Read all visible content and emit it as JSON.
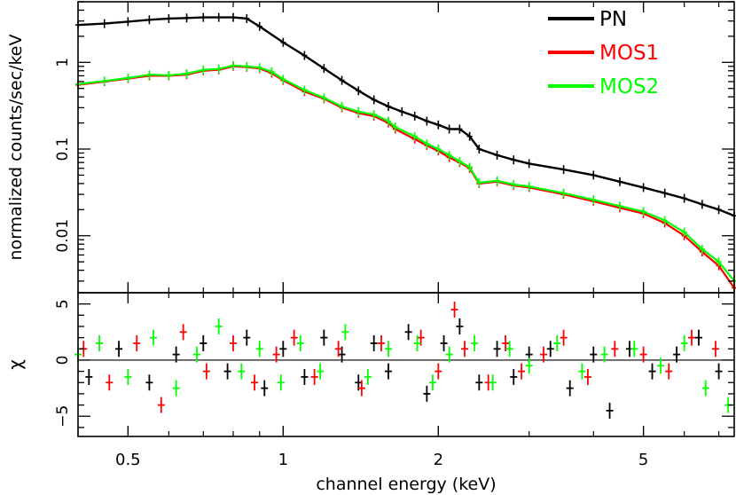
{
  "chart_data": [
    {
      "type": "scatter",
      "panel": "spectrum",
      "title": "",
      "xlabel": "channel energy (keV)",
      "ylabel": "normalized counts/sec/keV",
      "xscale": "log",
      "yscale": "log",
      "xlim": [
        0.4,
        7.5
      ],
      "ylim": [
        0.0022,
        5.0
      ],
      "x_ticks": [
        0.5,
        1,
        2,
        5
      ],
      "x_tick_labels": [
        "0.5",
        "1",
        "2",
        "5"
      ],
      "y_ticks": [
        0.01,
        0.1,
        1
      ],
      "y_tick_labels": [
        "0.01",
        "0.1",
        "1"
      ],
      "legend_position": "top-right",
      "series": [
        {
          "name": "PN",
          "color": "#000000",
          "x": [
            0.4,
            0.45,
            0.5,
            0.55,
            0.6,
            0.65,
            0.7,
            0.75,
            0.8,
            0.85,
            0.9,
            1.0,
            1.1,
            1.2,
            1.3,
            1.4,
            1.5,
            1.6,
            1.7,
            1.8,
            1.9,
            2.0,
            2.1,
            2.2,
            2.3,
            2.4,
            2.6,
            2.8,
            3.0,
            3.5,
            4.0,
            4.5,
            5.0,
            5.5,
            6.0,
            6.5,
            7.0,
            7.5
          ],
          "y": [
            2.7,
            2.8,
            2.95,
            3.1,
            3.2,
            3.25,
            3.3,
            3.3,
            3.3,
            3.2,
            2.6,
            1.7,
            1.2,
            0.85,
            0.62,
            0.47,
            0.37,
            0.31,
            0.27,
            0.24,
            0.21,
            0.19,
            0.17,
            0.17,
            0.14,
            0.1,
            0.085,
            0.075,
            0.068,
            0.058,
            0.05,
            0.042,
            0.036,
            0.031,
            0.027,
            0.023,
            0.02,
            0.017
          ]
        },
        {
          "name": "MOS1",
          "color": "#ff0000",
          "x": [
            0.4,
            0.45,
            0.5,
            0.55,
            0.6,
            0.65,
            0.7,
            0.75,
            0.8,
            0.85,
            0.9,
            0.95,
            1.0,
            1.1,
            1.2,
            1.3,
            1.4,
            1.5,
            1.6,
            1.65,
            1.8,
            1.9,
            2.0,
            2.1,
            2.2,
            2.3,
            2.4,
            2.6,
            2.8,
            3.0,
            3.5,
            4.0,
            4.5,
            5.0,
            5.5,
            6.0,
            6.5,
            7.0,
            7.5
          ],
          "y": [
            0.55,
            0.6,
            0.65,
            0.7,
            0.7,
            0.72,
            0.8,
            0.82,
            0.9,
            0.88,
            0.85,
            0.75,
            0.62,
            0.46,
            0.38,
            0.3,
            0.26,
            0.24,
            0.2,
            0.17,
            0.13,
            0.11,
            0.095,
            0.08,
            0.07,
            0.06,
            0.04,
            0.042,
            0.038,
            0.036,
            0.03,
            0.025,
            0.021,
            0.018,
            0.014,
            0.01,
            0.0065,
            0.0045,
            0.0025
          ]
        },
        {
          "name": "MOS2",
          "color": "#00ff00",
          "x": [
            0.4,
            0.45,
            0.5,
            0.55,
            0.6,
            0.65,
            0.7,
            0.75,
            0.8,
            0.85,
            0.9,
            0.95,
            1.0,
            1.1,
            1.2,
            1.3,
            1.4,
            1.5,
            1.6,
            1.65,
            1.8,
            1.9,
            2.0,
            2.1,
            2.2,
            2.3,
            2.4,
            2.6,
            2.8,
            3.0,
            3.5,
            4.0,
            4.5,
            5.0,
            5.5,
            6.0,
            6.5,
            7.0,
            7.5
          ],
          "y": [
            0.56,
            0.61,
            0.66,
            0.72,
            0.71,
            0.74,
            0.82,
            0.84,
            0.92,
            0.9,
            0.87,
            0.78,
            0.64,
            0.48,
            0.39,
            0.31,
            0.27,
            0.25,
            0.21,
            0.18,
            0.14,
            0.115,
            0.1,
            0.085,
            0.072,
            0.062,
            0.041,
            0.043,
            0.039,
            0.037,
            0.031,
            0.026,
            0.022,
            0.019,
            0.015,
            0.011,
            0.007,
            0.005,
            0.003
          ]
        }
      ]
    },
    {
      "type": "scatter",
      "panel": "residuals",
      "title": "",
      "xlabel": "channel energy (keV)",
      "ylabel": "χ",
      "xscale": "log",
      "xlim": [
        0.4,
        7.5
      ],
      "ylim": [
        -6.8,
        6.0
      ],
      "y_ticks": [
        -5,
        0,
        5
      ],
      "y_tick_labels": [
        "−5",
        "0",
        "5"
      ],
      "reference_line": 0,
      "series": [
        {
          "name": "PN",
          "color": "#000000",
          "x": [
            0.42,
            0.48,
            0.55,
            0.62,
            0.7,
            0.78,
            0.85,
            0.92,
            1.0,
            1.1,
            1.2,
            1.3,
            1.4,
            1.5,
            1.6,
            1.75,
            1.9,
            2.05,
            2.2,
            2.4,
            2.6,
            2.8,
            3.0,
            3.3,
            3.6,
            4.0,
            4.3,
            4.7,
            5.2,
            5.8,
            6.4,
            7.0
          ],
          "y": [
            -1.5,
            1.0,
            -2.0,
            0.5,
            1.5,
            -1.0,
            2.0,
            -2.5,
            1.0,
            -1.5,
            2.0,
            0.5,
            -2.0,
            1.5,
            -1.0,
            2.5,
            -3.0,
            1.5,
            3.0,
            -2.0,
            1.0,
            -1.5,
            0.5,
            1.0,
            -2.5,
            0.5,
            -4.5,
            1.0,
            -1.0,
            0.5,
            2.0,
            -1.0
          ]
        },
        {
          "name": "MOS1",
          "color": "#ff0000",
          "x": [
            0.41,
            0.46,
            0.52,
            0.58,
            0.64,
            0.71,
            0.8,
            0.88,
            0.97,
            1.05,
            1.15,
            1.28,
            1.42,
            1.55,
            1.85,
            2.0,
            2.15,
            2.25,
            2.5,
            2.7,
            2.9,
            3.2,
            3.5,
            3.9,
            4.4,
            5.0,
            5.6,
            6.2,
            6.9
          ],
          "y": [
            1.0,
            -2.0,
            1.5,
            -4.0,
            2.5,
            -1.0,
            1.5,
            -2.0,
            0.5,
            2.0,
            -1.5,
            1.0,
            -2.5,
            1.5,
            2.0,
            -1.0,
            4.5,
            1.0,
            -2.0,
            1.5,
            -1.0,
            0.5,
            2.0,
            -1.5,
            1.0,
            0.5,
            -1.0,
            2.0,
            1.0
          ]
        },
        {
          "name": "MOS2",
          "color": "#00ff00",
          "x": [
            0.4,
            0.44,
            0.5,
            0.56,
            0.62,
            0.68,
            0.75,
            0.83,
            0.9,
            0.99,
            1.08,
            1.18,
            1.32,
            1.46,
            1.6,
            1.82,
            1.95,
            2.1,
            2.35,
            2.55,
            2.75,
            3.0,
            3.4,
            3.8,
            4.2,
            4.8,
            5.4,
            6.0,
            6.6,
            7.3
          ],
          "y": [
            0.5,
            1.5,
            -1.5,
            2.0,
            -2.5,
            0.5,
            3.0,
            -1.0,
            1.0,
            -2.0,
            1.5,
            -1.0,
            2.5,
            -1.5,
            1.0,
            1.5,
            -2.0,
            0.5,
            1.5,
            -2.0,
            1.0,
            -0.5,
            1.5,
            -1.0,
            0.5,
            1.0,
            -0.5,
            1.5,
            -2.5,
            -4.0
          ]
        }
      ]
    }
  ]
}
